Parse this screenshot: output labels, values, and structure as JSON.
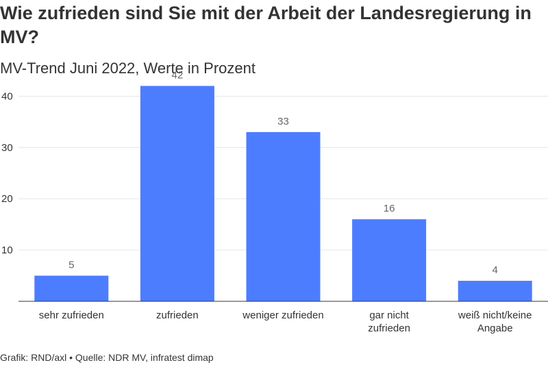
{
  "title": "Wie zufrieden sind Sie mit der Arbeit der Landesregierung in MV?",
  "subtitle": "MV-Trend Juni 2022, Werte in Prozent",
  "footer": "Grafik: RND/axl • Quelle: NDR MV, infratest dimap",
  "colors": {
    "bar": "#4d7dff",
    "grid": "#e6e6e6",
    "axis": "#333333"
  },
  "chart_data": {
    "type": "bar",
    "categories": [
      "sehr zufrieden",
      "zufrieden",
      "weniger zufrieden",
      "gar nicht zufrieden",
      "weiß nicht/keine Angabe"
    ],
    "category_lines": [
      [
        "sehr zufrieden"
      ],
      [
        "zufrieden"
      ],
      [
        "weniger zufrieden"
      ],
      [
        "gar nicht",
        "zufrieden"
      ],
      [
        "weiß nicht/keine",
        "Angabe"
      ]
    ],
    "values": [
      5,
      42,
      33,
      16,
      4
    ],
    "value_labels": [
      "5",
      "42",
      "33",
      "16",
      "4"
    ],
    "yticks": [
      10,
      20,
      30,
      40
    ],
    "ylim": [
      0,
      45
    ],
    "grid": true,
    "legend": "none"
  }
}
